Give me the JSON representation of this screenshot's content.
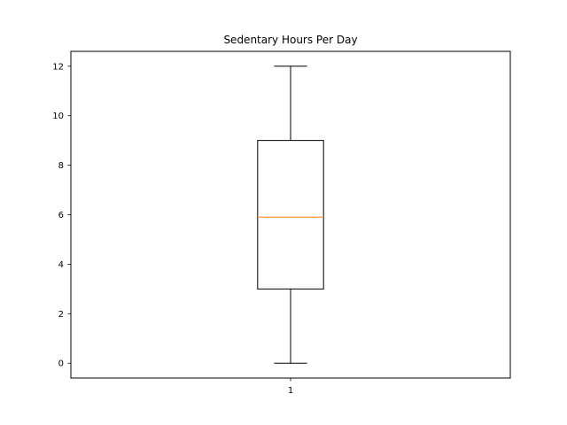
{
  "chart_data": {
    "type": "box",
    "title": "Sedentary Hours Per Day",
    "xlabel": "",
    "ylabel": "",
    "categories": [
      "1"
    ],
    "boxes": [
      {
        "category": "1",
        "min": 0,
        "q1": 3,
        "median": 5.9,
        "q3": 9,
        "max": 12
      }
    ],
    "ylim": [
      -0.6,
      12.6
    ],
    "yticks": [
      0,
      2,
      4,
      6,
      8,
      10,
      12
    ],
    "grid": false,
    "colors": {
      "box": "#000000",
      "median": "#ff7f0e"
    }
  }
}
